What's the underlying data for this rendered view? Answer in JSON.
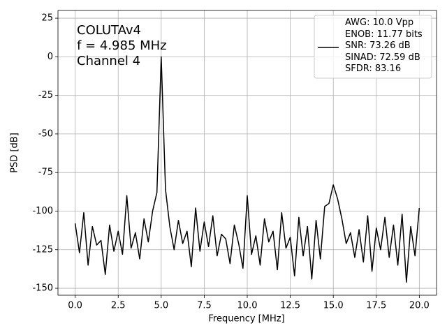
{
  "chart_data": {
    "type": "line",
    "annotation": "COLUTAv4\nf = 4.985 MHz\nChannel 4",
    "xlabel": "Frequency [MHz]",
    "ylabel": "PSD [dB]",
    "x": [
      0,
      0.25,
      0.5,
      0.75,
      1,
      1.25,
      1.5,
      1.75,
      2,
      2.25,
      2.5,
      2.75,
      3,
      3.25,
      3.5,
      3.75,
      4,
      4.25,
      4.5,
      4.75,
      5,
      5.25,
      5.5,
      5.75,
      6,
      6.25,
      6.5,
      6.75,
      7,
      7.25,
      7.5,
      7.75,
      8,
      8.25,
      8.5,
      8.75,
      9,
      9.25,
      9.5,
      9.75,
      10,
      10.25,
      10.5,
      10.75,
      11,
      11.25,
      11.5,
      11.75,
      12,
      12.25,
      12.5,
      12.75,
      13,
      13.25,
      13.5,
      13.75,
      14,
      14.25,
      14.5,
      14.75,
      15,
      15.25,
      15.5,
      15.75,
      16,
      16.25,
      16.5,
      16.75,
      17,
      17.25,
      17.5,
      17.75,
      18,
      18.25,
      18.5,
      18.75,
      19,
      19.25,
      19.5,
      19.75,
      20
    ],
    "series": [
      {
        "name": "AWG: 10.0 Vpp\nENOB: 11.77 bits\nSNR: 73.26 dB\nSINAD: 72.59 dB\nSFDR: 83.16",
        "color": "#000000",
        "values": [
          -108,
          -127,
          -101,
          -135,
          -110,
          -122,
          -119,
          -141,
          -109,
          -126,
          -113,
          -128,
          -90,
          -124,
          -114,
          -131,
          -105,
          -120,
          -100,
          -88,
          0,
          -86,
          -110,
          -125,
          -106,
          -121,
          -113,
          -136,
          -98,
          -126,
          -107,
          -123,
          -103,
          -129,
          -115,
          -118,
          -134,
          -109,
          -121,
          -137,
          -90,
          -128,
          -116,
          -135,
          -105,
          -120,
          -113,
          -138,
          -101,
          -124,
          -117,
          -142,
          -104,
          -129,
          -110,
          -144,
          -106,
          -131,
          -97,
          -95,
          -83,
          -92,
          -105,
          -121,
          -114,
          -130,
          -112,
          -133,
          -103,
          -139,
          -111,
          -125,
          -104,
          -130,
          -109,
          -135,
          -102,
          -146,
          -110,
          -129,
          -98
        ]
      }
    ],
    "xlim": [
      -1,
      21
    ],
    "ylim": [
      -154.5,
      30
    ],
    "xticks": [
      {
        "value": 0,
        "label": "0.0"
      },
      {
        "value": 2.5,
        "label": "2.5"
      },
      {
        "value": 5,
        "label": "5.0"
      },
      {
        "value": 7.5,
        "label": "7.5"
      },
      {
        "value": 10,
        "label": "10.0"
      },
      {
        "value": 12.5,
        "label": "12.5"
      },
      {
        "value": 15,
        "label": "15.0"
      },
      {
        "value": 17.5,
        "label": "17.5"
      },
      {
        "value": 20,
        "label": "20.0"
      }
    ],
    "yticks": [
      25,
      0,
      -25,
      -50,
      -75,
      -100,
      -125,
      -150
    ],
    "grid": true,
    "legend": "upper right"
  }
}
